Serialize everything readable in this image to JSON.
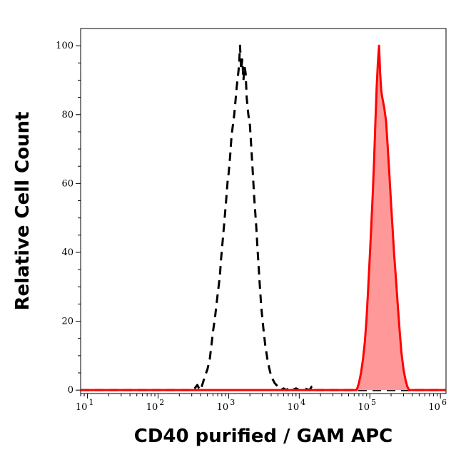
{
  "chart_data": {
    "type": "area",
    "title": "",
    "xlabel": "CD40 purified / GAM APC",
    "ylabel": "Relative Cell Count",
    "x_scale": "log",
    "xlim": [
      8,
      1200000
    ],
    "ylim": [
      -1,
      105
    ],
    "x_ticks": [
      {
        "base": "10",
        "exp": "1"
      },
      {
        "base": "10",
        "exp": "2"
      },
      {
        "base": "10",
        "exp": "3"
      },
      {
        "base": "10",
        "exp": "4"
      },
      {
        "base": "10",
        "exp": "5"
      },
      {
        "base": "10",
        "exp": "6"
      }
    ],
    "y_ticks": [
      "0",
      "20",
      "40",
      "60",
      "80",
      "100"
    ],
    "grid": false,
    "legend": "none",
    "series": [
      {
        "style": "dashed",
        "color": "#000000",
        "fill": "none",
        "points": [
          [
            8,
            0
          ],
          [
            300,
            0
          ],
          [
            330,
            0.5
          ],
          [
            360,
            1.5
          ],
          [
            380,
            0.5
          ],
          [
            400,
            0
          ],
          [
            430,
            2
          ],
          [
            460,
            4
          ],
          [
            500,
            6
          ],
          [
            540,
            9
          ],
          [
            570,
            13
          ],
          [
            600,
            17
          ],
          [
            640,
            21
          ],
          [
            700,
            28
          ],
          [
            750,
            33
          ],
          [
            780,
            38
          ],
          [
            820,
            43
          ],
          [
            870,
            49
          ],
          [
            920,
            55
          ],
          [
            970,
            61
          ],
          [
            1000,
            63
          ],
          [
            1050,
            68
          ],
          [
            1100,
            74
          ],
          [
            1150,
            77
          ],
          [
            1200,
            80
          ],
          [
            1250,
            84
          ],
          [
            1300,
            88
          ],
          [
            1350,
            91
          ],
          [
            1400,
            94
          ],
          [
            1450,
            100
          ],
          [
            1500,
            93
          ],
          [
            1560,
            96
          ],
          [
            1620,
            90
          ],
          [
            1680,
            94
          ],
          [
            1740,
            92
          ],
          [
            1800,
            85
          ],
          [
            1900,
            80
          ],
          [
            2000,
            77
          ],
          [
            2100,
            70
          ],
          [
            2200,
            63
          ],
          [
            2300,
            56
          ],
          [
            2450,
            48
          ],
          [
            2600,
            39
          ],
          [
            2750,
            31
          ],
          [
            2900,
            24
          ],
          [
            3100,
            18
          ],
          [
            3300,
            13
          ],
          [
            3600,
            8
          ],
          [
            4000,
            4
          ],
          [
            4500,
            2
          ],
          [
            5000,
            1
          ],
          [
            5500,
            0
          ],
          [
            6000,
            0.5
          ],
          [
            6600,
            0
          ],
          [
            7200,
            0.8
          ],
          [
            8000,
            0
          ],
          [
            9000,
            0.5
          ],
          [
            10000,
            0
          ],
          [
            12000,
            0.5
          ],
          [
            14000,
            0
          ],
          [
            15000,
            1
          ],
          [
            16000,
            0
          ],
          [
            1200000,
            0
          ]
        ]
      },
      {
        "style": "solid",
        "color": "#ff0000",
        "fill": "#ff9999",
        "points": [
          [
            8,
            0
          ],
          [
            65000,
            0
          ],
          [
            70000,
            2
          ],
          [
            75000,
            5
          ],
          [
            80000,
            9
          ],
          [
            85000,
            14
          ],
          [
            90000,
            21
          ],
          [
            95000,
            30
          ],
          [
            100000,
            39
          ],
          [
            105000,
            48
          ],
          [
            110000,
            57
          ],
          [
            115000,
            67
          ],
          [
            120000,
            78
          ],
          [
            125000,
            88
          ],
          [
            130000,
            95
          ],
          [
            135000,
            100
          ],
          [
            140000,
            92
          ],
          [
            145000,
            87
          ],
          [
            150000,
            85
          ],
          [
            160000,
            82
          ],
          [
            170000,
            78
          ],
          [
            180000,
            70
          ],
          [
            190000,
            62
          ],
          [
            200000,
            54
          ],
          [
            210000,
            47
          ],
          [
            220000,
            40
          ],
          [
            235000,
            32
          ],
          [
            250000,
            24
          ],
          [
            265000,
            17
          ],
          [
            280000,
            11
          ],
          [
            300000,
            6
          ],
          [
            320000,
            3
          ],
          [
            340000,
            1
          ],
          [
            360000,
            0
          ],
          [
            1200000,
            0
          ]
        ]
      }
    ]
  }
}
